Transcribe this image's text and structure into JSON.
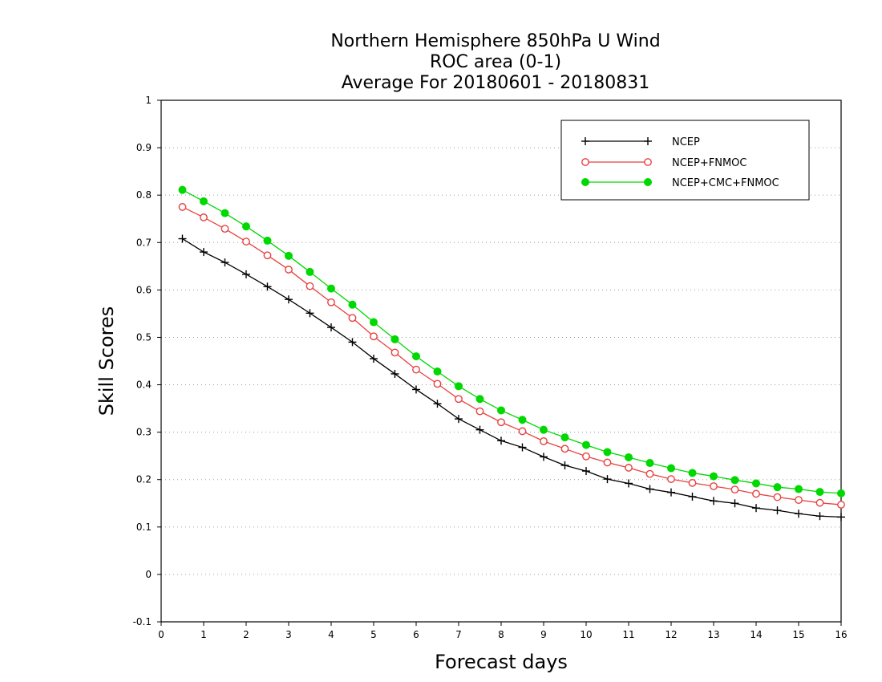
{
  "chart_data": {
    "type": "line",
    "title": [
      "Northern Hemisphere 850hPa U Wind",
      "ROC area (0-1)",
      "Average For 20180601 - 20180831"
    ],
    "xlabel": "Forecast days",
    "ylabel": "Skill Scores",
    "xlim": [
      0,
      16
    ],
    "ylim": [
      -0.1,
      1
    ],
    "x_ticks": [
      0,
      1,
      2,
      3,
      4,
      5,
      6,
      7,
      8,
      9,
      10,
      11,
      12,
      13,
      14,
      15,
      16
    ],
    "x_tick_labels": [
      "0",
      "1",
      "2",
      "3",
      "4",
      "5",
      "6",
      "7",
      "8",
      "9",
      "10",
      "11",
      "12",
      "13",
      "14",
      "15",
      "16"
    ],
    "y_ticks": [
      -0.1,
      0,
      0.1,
      0.2,
      0.3,
      0.4,
      0.5,
      0.6,
      0.7,
      0.8,
      0.9,
      1
    ],
    "y_tick_labels": [
      "-0.1",
      "0",
      "0.1",
      "0.2",
      "0.3",
      "0.4",
      "0.5",
      "0.6",
      "0.7",
      "0.8",
      "0.9",
      "1"
    ],
    "grid": "horizontal dotted",
    "legend_position": "top-right",
    "x": [
      0.5,
      1,
      1.5,
      2,
      2.5,
      3,
      3.5,
      4,
      4.5,
      5,
      5.5,
      6,
      6.5,
      7,
      7.5,
      8,
      8.5,
      9,
      9.5,
      10,
      10.5,
      11,
      11.5,
      12,
      12.5,
      13,
      13.5,
      14,
      14.5,
      15,
      15.5,
      16
    ],
    "series": [
      {
        "name": "NCEP",
        "color": "#000000",
        "marker": "plus",
        "values": [
          0.708,
          0.68,
          0.658,
          0.633,
          0.607,
          0.58,
          0.551,
          0.521,
          0.49,
          0.455,
          0.423,
          0.39,
          0.36,
          0.328,
          0.305,
          0.282,
          0.268,
          0.248,
          0.23,
          0.218,
          0.201,
          0.192,
          0.18,
          0.173,
          0.164,
          0.155,
          0.15,
          0.14,
          0.135,
          0.128,
          0.123,
          0.121
        ]
      },
      {
        "name": "NCEP+FNMOC",
        "color": "#e84040",
        "marker": "open-circle",
        "values": [
          0.775,
          0.753,
          0.729,
          0.702,
          0.673,
          0.643,
          0.608,
          0.574,
          0.541,
          0.502,
          0.468,
          0.432,
          0.402,
          0.37,
          0.344,
          0.321,
          0.302,
          0.281,
          0.265,
          0.249,
          0.236,
          0.225,
          0.212,
          0.201,
          0.193,
          0.186,
          0.179,
          0.17,
          0.163,
          0.157,
          0.151,
          0.147
        ]
      },
      {
        "name": "NCEP+CMC+FNMOC",
        "color": "#00d800",
        "marker": "filled-circle",
        "values": [
          0.811,
          0.787,
          0.762,
          0.734,
          0.704,
          0.672,
          0.638,
          0.603,
          0.569,
          0.532,
          0.496,
          0.46,
          0.428,
          0.397,
          0.37,
          0.346,
          0.326,
          0.305,
          0.289,
          0.273,
          0.258,
          0.247,
          0.235,
          0.224,
          0.214,
          0.207,
          0.199,
          0.192,
          0.184,
          0.18,
          0.174,
          0.171
        ]
      }
    ]
  }
}
